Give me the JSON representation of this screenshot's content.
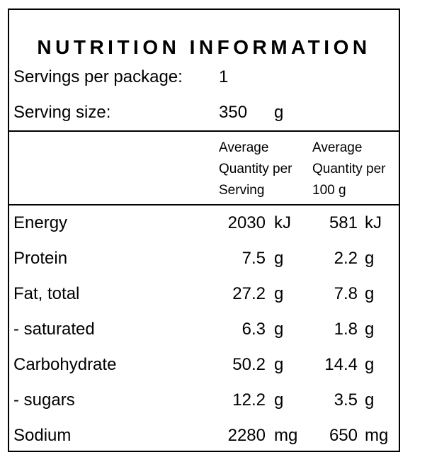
{
  "title": "NUTRITION INFORMATION",
  "servings": {
    "label": "Servings per package:",
    "value": "1"
  },
  "serving_size": {
    "label": "Serving size:",
    "value": "350",
    "unit": "g"
  },
  "columns": {
    "per_serving": [
      "Average",
      "Quantity per",
      "Serving"
    ],
    "per_100g": [
      "Average",
      "Quantity per",
      "100 g"
    ]
  },
  "rows": [
    {
      "label": "Energy",
      "serving": "2030",
      "serving_unit": "kJ",
      "per100": "581",
      "per100_unit": "kJ"
    },
    {
      "label": "Protein",
      "serving": "7.5",
      "serving_unit": "g",
      "per100": "2.2",
      "per100_unit": "g"
    },
    {
      "label": "Fat, total",
      "serving": "27.2",
      "serving_unit": "g",
      "per100": "7.8",
      "per100_unit": "g"
    },
    {
      "label": "- saturated",
      "serving": "6.3",
      "serving_unit": "g",
      "per100": "1.8",
      "per100_unit": "g"
    },
    {
      "label": "Carbohydrate",
      "serving": "50.2",
      "serving_unit": "g",
      "per100": "14.4",
      "per100_unit": "g"
    },
    {
      "label": "- sugars",
      "serving": "12.2",
      "serving_unit": "g",
      "per100": "3.5",
      "per100_unit": "g"
    },
    {
      "label": "Sodium",
      "serving": "2280",
      "serving_unit": "mg",
      "per100": "650",
      "per100_unit": "mg"
    }
  ]
}
